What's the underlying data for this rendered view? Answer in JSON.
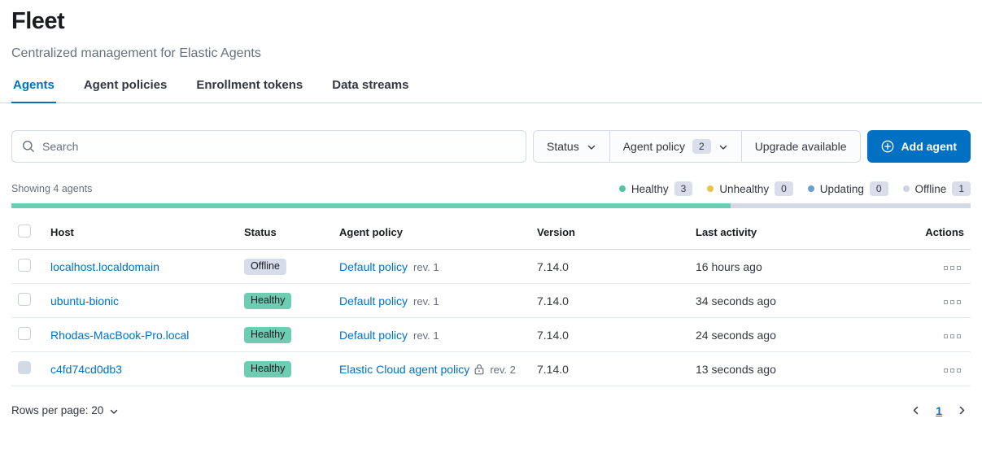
{
  "page": {
    "title": "Fleet",
    "subtitle": "Centralized management for Elastic Agents"
  },
  "tabs": [
    {
      "label": "Agents",
      "active": true
    },
    {
      "label": "Agent policies",
      "active": false
    },
    {
      "label": "Enrollment tokens",
      "active": false
    },
    {
      "label": "Data streams",
      "active": false
    }
  ],
  "toolbar": {
    "search_placeholder": "Search",
    "filters": [
      {
        "label": "Status",
        "count": null,
        "chevron": true
      },
      {
        "label": "Agent policy",
        "count": "2",
        "chevron": true
      },
      {
        "label": "Upgrade available",
        "count": null,
        "chevron": false
      }
    ],
    "add_agent_label": "Add agent"
  },
  "summary": {
    "showing": "Showing 4 agents",
    "legend": [
      {
        "label": "Healthy",
        "count": "3",
        "color": "#54c3a2"
      },
      {
        "label": "Unhealthy",
        "count": "0",
        "color": "#e7c54a"
      },
      {
        "label": "Updating",
        "count": "0",
        "color": "#6e9fd1"
      },
      {
        "label": "Offline",
        "count": "1",
        "color": "#cdd4e2"
      }
    ],
    "health_bar_segments": [
      {
        "color": "#6dccb1",
        "percent": 75
      },
      {
        "color": "#d3dae6",
        "percent": 25
      }
    ]
  },
  "table": {
    "headers": [
      "Host",
      "Status",
      "Agent policy",
      "Version",
      "Last activity",
      "Actions"
    ],
    "rows": [
      {
        "host": "localhost.localdomain",
        "status": "Offline",
        "status_type": "offline",
        "policy": "Default policy",
        "revision": "rev. 1",
        "locked": false,
        "version": "7.14.0",
        "last_activity": "16 hours ago",
        "checkbox_disabled": false
      },
      {
        "host": "ubuntu-bionic",
        "status": "Healthy",
        "status_type": "healthy",
        "policy": "Default policy",
        "revision": "rev. 1",
        "locked": false,
        "version": "7.14.0",
        "last_activity": "34 seconds ago",
        "checkbox_disabled": false
      },
      {
        "host": "Rhodas-MacBook-Pro.local",
        "status": "Healthy",
        "status_type": "healthy",
        "policy": "Default policy",
        "revision": "rev. 1",
        "locked": false,
        "version": "7.14.0",
        "last_activity": "24 seconds ago",
        "checkbox_disabled": false
      },
      {
        "host": "c4fd74cd0db3",
        "status": "Healthy",
        "status_type": "healthy",
        "policy": "Elastic Cloud agent policy",
        "revision": "rev. 2",
        "locked": true,
        "version": "7.14.0",
        "last_activity": "13 seconds ago",
        "checkbox_disabled": true
      }
    ]
  },
  "footer": {
    "rows_per_page_label": "Rows per page: 20",
    "pagination": {
      "current_page": "1"
    }
  },
  "colors": {
    "primary": "#0071c2",
    "healthy_badge": "#6dccb1",
    "offline_badge": "#d6dcea",
    "border": "#d3dae6",
    "muted_text": "#69707d"
  }
}
